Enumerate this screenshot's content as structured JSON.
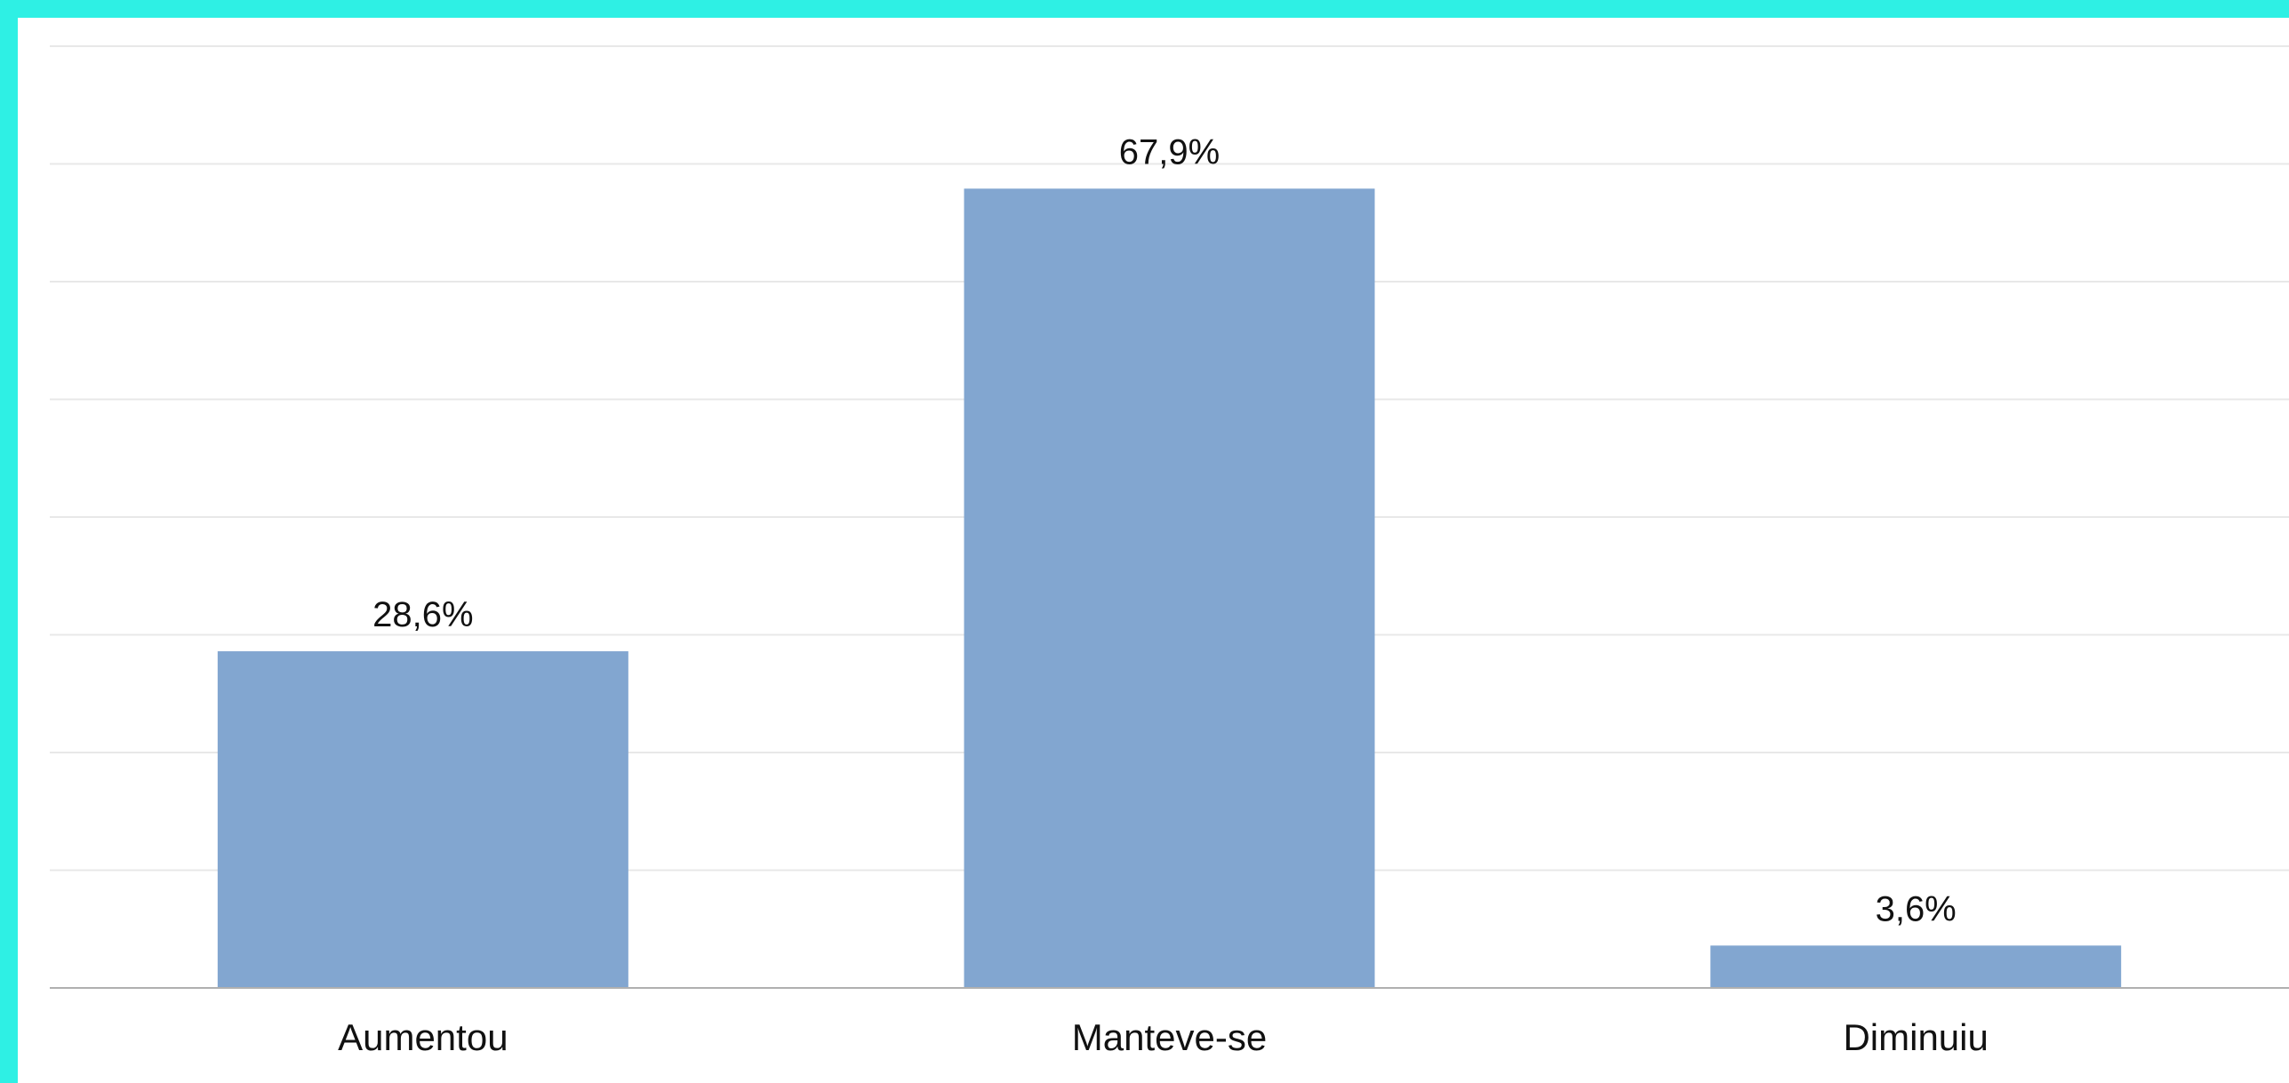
{
  "chart_data": {
    "type": "bar",
    "categories": [
      "Aumentou",
      "Manteve-se",
      "Diminuiu"
    ],
    "values": [
      28.6,
      67.9,
      3.6
    ],
    "value_labels": [
      "28,6%",
      "67,9%",
      "3,6%"
    ],
    "unit": "%",
    "ylim": [
      0,
      80
    ],
    "grid": true,
    "legend": "none",
    "title": "",
    "xlabel": "",
    "ylabel": ""
  },
  "colors": {
    "frame": "#2ef0e4",
    "background": "#ffffff",
    "bar": "#82a6d0",
    "gridline": "#e8e8e8",
    "baseline": "#b0b0b0",
    "text": "#111111"
  }
}
